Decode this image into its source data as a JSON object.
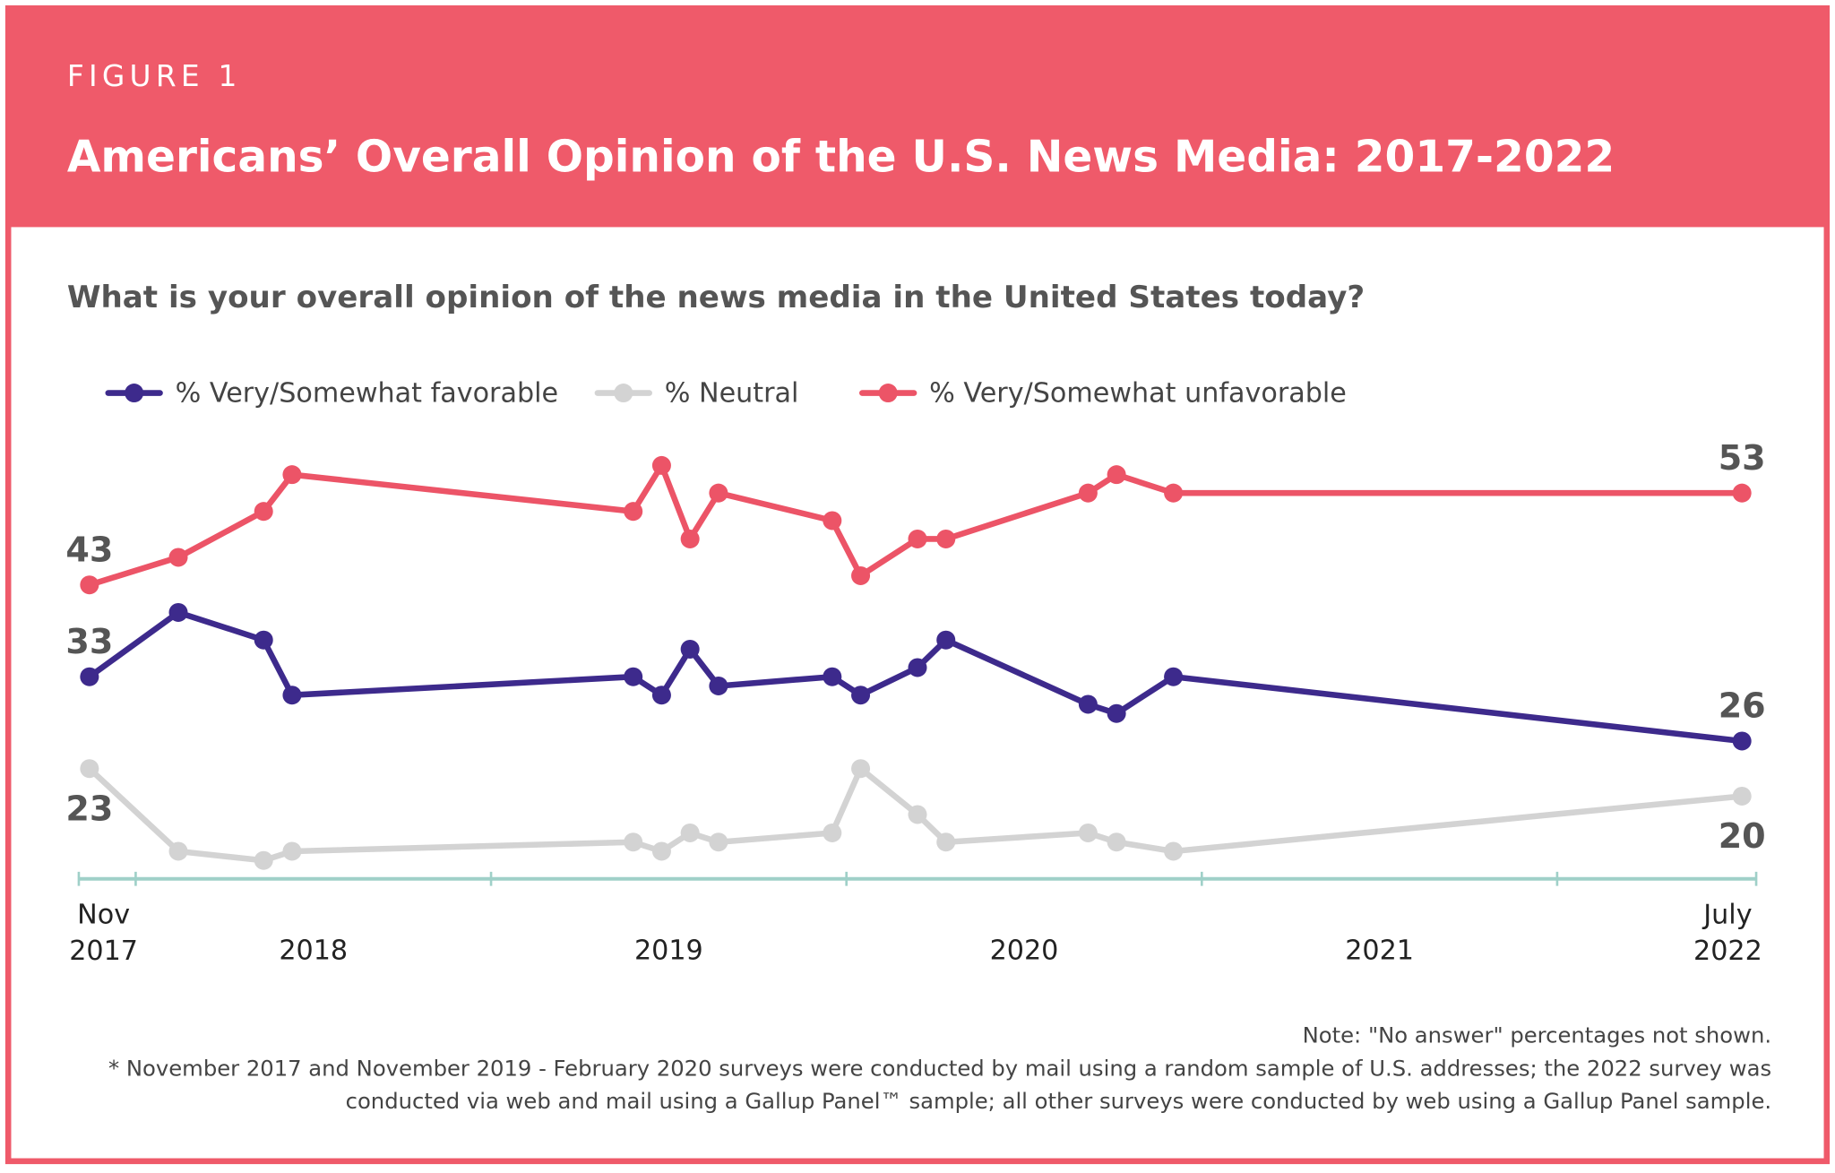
{
  "chart_data": {
    "type": "line",
    "label": "FIGURE 1",
    "title": "Americans’ Overall Opinion of the U.S. News Media: 2017-2022",
    "subtitle": "What is your overall opinion of the news media in the United States today?",
    "x": [
      2017.87,
      2018.12,
      2018.36,
      2018.44,
      2019.4,
      2019.48,
      2019.56,
      2019.64,
      2019.96,
      2020.04,
      2020.2,
      2020.28,
      2020.68,
      2020.76,
      2020.92,
      2022.52
    ],
    "series": [
      {
        "name": "% Very/Somewhat favorable",
        "color": "#3d2a8c",
        "values": [
          33,
          40,
          37,
          31,
          33,
          31,
          36,
          32,
          33,
          31,
          34,
          37,
          30,
          29,
          33,
          26
        ]
      },
      {
        "name": "% Neutral",
        "color": "#d3d3d3",
        "values": [
          23,
          14,
          13,
          14,
          15,
          14,
          16,
          15,
          16,
          23,
          18,
          15,
          16,
          15,
          14,
          20
        ]
      },
      {
        "name": "% Very/Somewhat unfavorable",
        "color": "#ec5467",
        "values": [
          43,
          46,
          51,
          55,
          51,
          56,
          48,
          53,
          50,
          44,
          48,
          48,
          53,
          55,
          53,
          53
        ]
      }
    ],
    "xlim": [
      2017.84,
      2022.56
    ],
    "xticks": [
      2017.84,
      2018,
      2019,
      2020,
      2021,
      2022,
      2022.56
    ],
    "xlabels": [
      {
        "value": 2017.87,
        "label": "Nov 2017"
      },
      {
        "value": 2018.5,
        "label": "2018"
      },
      {
        "value": 2019.5,
        "label": "2019"
      },
      {
        "value": 2020.5,
        "label": "2020"
      },
      {
        "value": 2021.5,
        "label": "2021"
      },
      {
        "value": 2022.52,
        "label": "July 2022"
      }
    ],
    "ylim": [
      11,
      58
    ],
    "notes": [
      "Note: \"No answer\" percentages not shown.",
      "* November 2017 and November 2019 - February 2020 surveys were conducted by mail using a random sample of U.S. addresses; the 2022 survey was",
      "conducted via web and mail using a Gallup Panel™ sample; all other surveys were conducted by web using a Gallup Panel sample."
    ]
  }
}
